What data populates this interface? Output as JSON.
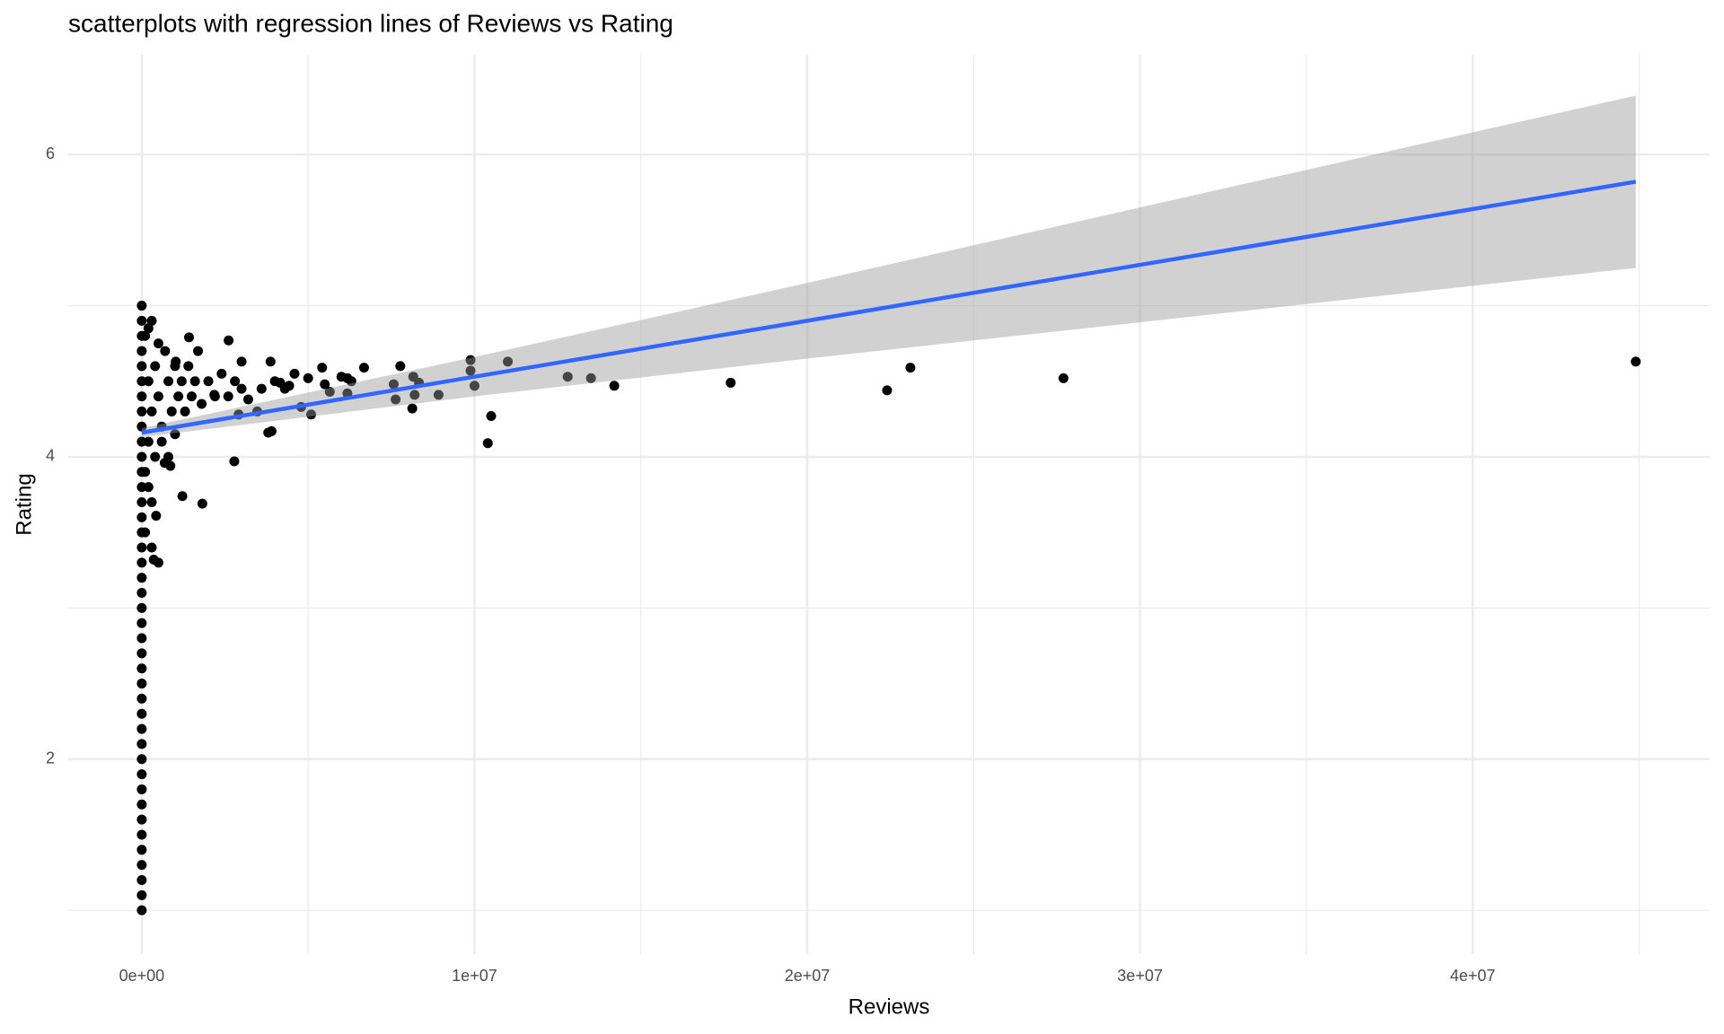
{
  "chart_data": {
    "type": "scatter",
    "title": "scatterplots with regression lines of Reviews vs Rating",
    "x_label": "Reviews",
    "y_label": "Rating",
    "xlim": [
      -2210000,
      47120000
    ],
    "ylim": [
      0.71,
      6.66
    ],
    "xticks": [
      {
        "value": 0,
        "label": "0e+00"
      },
      {
        "value": 10000000,
        "label": "1e+07"
      },
      {
        "value": 20000000,
        "label": "2e+07"
      },
      {
        "value": 30000000,
        "label": "3e+07"
      },
      {
        "value": 40000000,
        "label": "4e+07"
      }
    ],
    "yticks": [
      2,
      4,
      6
    ],
    "minor_xticks": [
      5000000,
      15000000,
      25000000,
      35000000,
      45000000
    ],
    "minor_yticks": [
      1,
      3,
      5
    ],
    "grid": true,
    "color": "#000000",
    "x": [
      44900000,
      27700000,
      23100000,
      22400000,
      17700000,
      14200000,
      13500000,
      12800000,
      11000000,
      10500000,
      10400000,
      10000000,
      9880000,
      9880000,
      8920000,
      8330000,
      8160000,
      8130000,
      8200000,
      7770000,
      7630000,
      7570000,
      6680000,
      6180000,
      6180000,
      5650000,
      5420000,
      5090000,
      4790000,
      4590000,
      4430000,
      4160000,
      3900000,
      3800000,
      3870000,
      2780000,
      2610000,
      3000000,
      1820000,
      1220000,
      3470000,
      2910000,
      2180000,
      1690000,
      1420000,
      1020000,
      690000,
      430000,
      360000,
      860000,
      200000,
      300000,
      400000,
      500000,
      600000,
      700000,
      800000,
      900000,
      1000000,
      1100000,
      1200000,
      1300000,
      1400000,
      1500000,
      1600000,
      1800000,
      2000000,
      2200000,
      2400000,
      2600000,
      2800000,
      3000000,
      3200000,
      3600000,
      4000000,
      4300000,
      5000000,
      5500000,
      6000000,
      6300000,
      100000,
      200000,
      300000,
      500000,
      100000,
      200000,
      300000,
      100000,
      200000,
      400000,
      600000,
      800000,
      1000000,
      500000,
      300000,
      0,
      0,
      0,
      0,
      0,
      0,
      0,
      0,
      0,
      0,
      0,
      0,
      0,
      0,
      0,
      0,
      0,
      0,
      0,
      0,
      0,
      0,
      0,
      0,
      0,
      0,
      0,
      0,
      0,
      0,
      0,
      0,
      0,
      0,
      0,
      0,
      0,
      0,
      0,
      0,
      0
    ],
    "values": [
      4.63,
      4.52,
      4.59,
      4.44,
      4.49,
      4.47,
      4.52,
      4.53,
      4.63,
      4.27,
      4.09,
      4.47,
      4.64,
      4.57,
      4.41,
      4.49,
      4.53,
      4.32,
      4.41,
      4.6,
      4.38,
      4.48,
      4.59,
      4.42,
      4.52,
      4.43,
      4.59,
      4.28,
      4.33,
      4.55,
      4.47,
      4.49,
      4.17,
      4.16,
      4.63,
      3.97,
      4.77,
      4.63,
      3.69,
      3.74,
      4.3,
      4.28,
      4.41,
      4.7,
      4.79,
      4.63,
      3.96,
      3.61,
      3.32,
      3.94,
      4.5,
      4.3,
      4.6,
      4.4,
      4.2,
      4.7,
      4.5,
      4.3,
      4.6,
      4.4,
      4.5,
      4.3,
      4.6,
      4.4,
      4.5,
      4.35,
      4.5,
      4.4,
      4.55,
      4.4,
      4.5,
      4.45,
      4.38,
      4.45,
      4.5,
      4.45,
      4.52,
      4.48,
      4.53,
      4.5,
      4.8,
      4.85,
      4.9,
      4.75,
      3.9,
      3.8,
      3.7,
      3.5,
      4.1,
      4.0,
      4.1,
      4.0,
      4.15,
      3.3,
      3.4,
      1.0,
      1.1,
      1.2,
      1.3,
      1.4,
      1.5,
      1.6,
      1.7,
      1.8,
      1.9,
      2.0,
      2.1,
      2.2,
      2.3,
      2.4,
      2.5,
      2.6,
      2.7,
      2.8,
      2.9,
      3.0,
      3.1,
      3.2,
      3.3,
      3.4,
      3.5,
      3.6,
      3.7,
      3.8,
      3.9,
      4.0,
      4.1,
      4.2,
      4.3,
      4.4,
      4.5,
      4.6,
      4.7,
      4.8,
      4.9,
      5.0
    ],
    "smooth": {
      "color": "#3366ff",
      "band_color": "#999999",
      "x": [
        0,
        10000000,
        20000000,
        30000000,
        44900000
      ],
      "values": [
        4.16,
        4.53,
        4.9,
        5.27,
        5.82
      ],
      "lower": [
        4.13,
        4.4,
        4.65,
        4.89,
        5.25
      ],
      "upper": [
        4.19,
        4.66,
        5.15,
        5.65,
        6.39
      ]
    }
  }
}
